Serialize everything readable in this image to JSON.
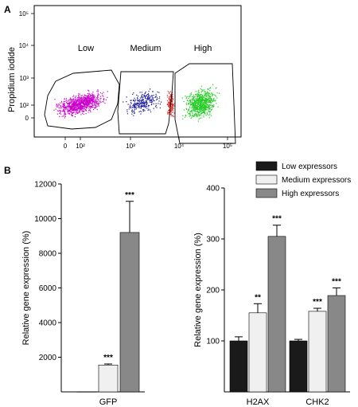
{
  "chart_data": [
    {
      "panel": "A",
      "type": "scatter",
      "ylabel": "Propidium iodide",
      "x_ticks": [
        "0",
        "10²",
        "10³",
        "10⁴",
        "10⁵"
      ],
      "y_ticks": [
        "0",
        "10²",
        "10³",
        "10⁴",
        "10⁵"
      ],
      "scale": "log",
      "gates": [
        {
          "name": "Low",
          "color": "#cc00cc"
        },
        {
          "name": "Medium",
          "color": "#1a1aa0"
        },
        {
          "name": "High",
          "color": "#22cc22"
        }
      ],
      "overlap_color": "#dd2222"
    },
    {
      "panel": "B",
      "type": "bar",
      "categories": [
        "GFP"
      ],
      "ylabel": "Relative gene expression (%)",
      "ylim": [
        0,
        12000
      ],
      "yticks": [
        2000,
        4000,
        6000,
        8000,
        10000,
        12000
      ],
      "series": [
        {
          "name": "Low expressors",
          "values": [
            10
          ],
          "errors": [
            0
          ],
          "sig": [
            ""
          ]
        },
        {
          "name": "Medium expressors",
          "values": [
            1550
          ],
          "errors": [
            60
          ],
          "sig": [
            "***"
          ]
        },
        {
          "name": "High expressors",
          "values": [
            9200
          ],
          "errors": [
            1800
          ],
          "sig": [
            "***"
          ]
        }
      ]
    },
    {
      "panel": "B",
      "type": "bar",
      "categories": [
        "H2AX",
        "CHK2"
      ],
      "ylabel": "Relative gene expression (%)",
      "ylim": [
        0,
        400
      ],
      "yticks": [
        100,
        200,
        300,
        400
      ],
      "series": [
        {
          "name": "Low expressors",
          "values": [
            100,
            100
          ],
          "errors": [
            8,
            3
          ],
          "sig": [
            "",
            ""
          ]
        },
        {
          "name": "Medium expressors",
          "values": [
            155,
            158
          ],
          "errors": [
            18,
            6
          ],
          "sig": [
            "**",
            "***"
          ]
        },
        {
          "name": "High expressors",
          "values": [
            305,
            189
          ],
          "errors": [
            22,
            15
          ],
          "sig": [
            "***",
            "***"
          ]
        }
      ]
    }
  ],
  "panel_labels": [
    "A",
    "B"
  ],
  "legend": {
    "items": [
      {
        "name": "Low expressors",
        "color": "#1a1a1a"
      },
      {
        "name": "Medium expressors",
        "color": "#f0f0f0"
      },
      {
        "name": "High expressors",
        "color": "#888888"
      }
    ]
  }
}
